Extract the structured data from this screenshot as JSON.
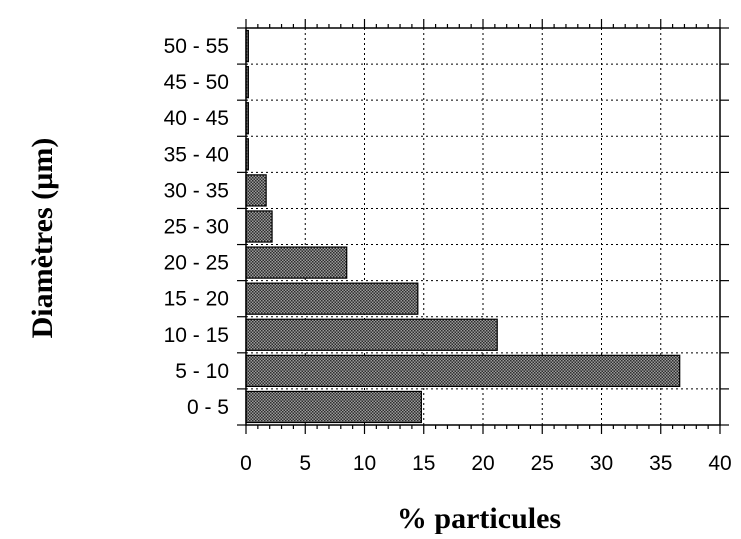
{
  "chart_data": {
    "type": "bar",
    "orientation": "horizontal",
    "categories": [
      "0 - 5",
      "5 - 10",
      "10 - 15",
      "15 - 20",
      "20 - 25",
      "25 - 30",
      "30 - 35",
      "35 - 40",
      "40 - 45",
      "45 - 50",
      "50 - 55"
    ],
    "values": [
      14.8,
      36.6,
      21.2,
      14.5,
      8.5,
      2.2,
      1.7,
      0.2,
      0.2,
      0.2,
      0.2
    ],
    "xlabel": "% particules",
    "ylabel": "Diamètres (µm)",
    "xlim": [
      0,
      40
    ],
    "xticks": [
      0,
      5,
      10,
      15,
      20,
      25,
      30,
      35,
      40
    ],
    "grid": true,
    "bar_color": "#777777"
  }
}
